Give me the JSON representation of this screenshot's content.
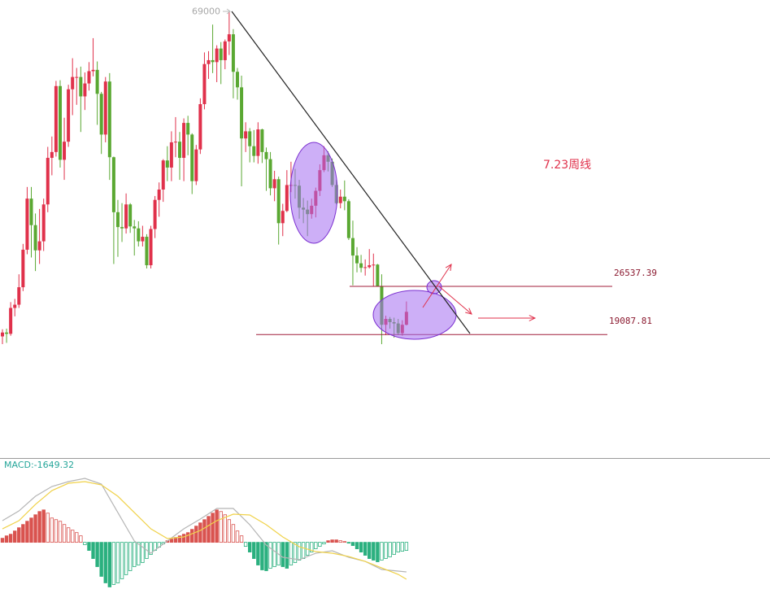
{
  "chart_data": [
    {
      "type": "candlestick",
      "ylim": [
        0,
        70800
      ],
      "up_color": "#e0314b",
      "down_color": "#5aa832",
      "open": [
        18800,
        19400,
        19200,
        23200,
        23700,
        26400,
        32200,
        40100,
        36000,
        32100,
        33500,
        39200,
        46400,
        47300,
        57500,
        46100,
        48900,
        57000,
        58900,
        58900,
        55900,
        57900,
        59800,
        60000,
        56300,
        50000,
        58200,
        46500,
        38000,
        35700,
        35500,
        39200,
        35800,
        35500,
        33500,
        34200,
        29800,
        35400,
        39900,
        41500,
        46000,
        44900,
        48800,
        48900,
        46400,
        51800,
        50000,
        42800,
        47700,
        54700,
        60900,
        61500,
        61200,
        63300,
        61500,
        64400,
        65500,
        59700,
        57300,
        49400,
        50500,
        48200,
        46700,
        50800,
        47300,
        46200,
        41700,
        43100,
        36300,
        38200,
        42200,
        42200,
        42100,
        38700,
        38400,
        37700,
        39000,
        41300,
        44500,
        46800,
        45800,
        42200,
        39400,
        40400,
        39700,
        34000,
        31300,
        30100,
        29400,
        29500,
        29800,
        29900,
        26600,
        20600,
        21500,
        21000,
        20800,
        19300,
        20600
      ],
      "high": [
        19900,
        20000,
        24100,
        24600,
        28400,
        33100,
        41900,
        41900,
        37800,
        38500,
        40100,
        48100,
        49700,
        58300,
        58400,
        52600,
        57700,
        61800,
        60300,
        60500,
        59600,
        61200,
        64900,
        61300,
        56600,
        58900,
        59500,
        46600,
        39900,
        39400,
        40900,
        39400,
        36800,
        36600,
        35900,
        34600,
        35900,
        40500,
        42600,
        46200,
        48200,
        50500,
        52700,
        50400,
        52500,
        52900,
        50200,
        48400,
        55600,
        62700,
        62900,
        67000,
        63800,
        64300,
        64700,
        69000,
        66300,
        60300,
        59100,
        51900,
        51000,
        50700,
        51900,
        50900,
        48000,
        47300,
        44400,
        43500,
        39300,
        44500,
        45800,
        44700,
        43000,
        40200,
        39800,
        40100,
        41800,
        45400,
        48200,
        47400,
        46300,
        43000,
        41500,
        42900,
        40000,
        36700,
        32600,
        31400,
        30700,
        32300,
        31600,
        30000,
        28400,
        22000,
        21800,
        21700,
        21500,
        21300,
        24200
      ],
      "low": [
        17600,
        17800,
        18900,
        21900,
        23200,
        25800,
        31500,
        31000,
        28900,
        30000,
        32000,
        38000,
        43700,
        46600,
        44900,
        43000,
        48100,
        53000,
        54600,
        50400,
        53800,
        56800,
        59000,
        51500,
        47000,
        48800,
        43000,
        30000,
        31100,
        33400,
        34700,
        34800,
        31300,
        32700,
        32700,
        29300,
        29300,
        34000,
        37300,
        39600,
        42800,
        42800,
        46500,
        43000,
        42800,
        46800,
        40800,
        42200,
        47000,
        53900,
        58600,
        59500,
        58100,
        57800,
        60100,
        62300,
        55600,
        55400,
        42000,
        47300,
        45700,
        45700,
        45500,
        45600,
        41300,
        40600,
        39700,
        33000,
        34300,
        38000,
        41100,
        40100,
        37000,
        36300,
        34300,
        37000,
        37200,
        40500,
        44200,
        44300,
        41900,
        39200,
        38600,
        38300,
        33700,
        26700,
        28700,
        28700,
        28200,
        29300,
        26500,
        26600,
        17600,
        19000,
        20000,
        18600,
        19000,
        18900,
        20500
      ],
      "close": [
        19400,
        19200,
        23200,
        23700,
        26400,
        32200,
        40100,
        36000,
        32100,
        33500,
        39200,
        46400,
        47300,
        57500,
        46100,
        48900,
        57000,
        58900,
        58900,
        55900,
        57900,
        59800,
        60000,
        56300,
        50000,
        58200,
        46500,
        38000,
        35700,
        35500,
        39200,
        35800,
        35500,
        33500,
        34200,
        29800,
        35400,
        39900,
        41500,
        46000,
        44900,
        48800,
        48900,
        46400,
        51800,
        50000,
        42800,
        47700,
        54700,
        60900,
        61500,
        61200,
        63300,
        61500,
        64400,
        65500,
        59700,
        57300,
        49400,
        50500,
        48200,
        46700,
        50800,
        47300,
        46200,
        41700,
        43100,
        36300,
        38200,
        42200,
        42200,
        42100,
        38700,
        38400,
        37700,
        39000,
        41300,
        44500,
        46800,
        45800,
        42200,
        39400,
        40400,
        39700,
        34000,
        31300,
        30100,
        29400,
        29500,
        29800,
        29900,
        26600,
        20600,
        21500,
        21000,
        20800,
        19300,
        20600,
        22600
      ],
      "hlines": [
        26537.39,
        19087.81
      ],
      "annotation": "7.23周线"
    },
    {
      "type": "macd",
      "label": "MACD:-1649.32",
      "ylim": [
        -9500,
        16000
      ],
      "up_color": "#d9534f",
      "down_color": "#2bb07f",
      "values": [
        825,
        1320,
        1650,
        2310,
        2970,
        3630,
        4290,
        4950,
        5610,
        6270,
        6600,
        5940,
        4950,
        4620,
        4290,
        3630,
        2970,
        2475,
        1980,
        1320,
        -495,
        -1650,
        -3300,
        -4950,
        -6930,
        -8250,
        -9075,
        -8580,
        -8250,
        -7425,
        -6600,
        -5775,
        -4950,
        -4620,
        -4125,
        -3300,
        -2475,
        -1650,
        -990,
        -330,
        330,
        660,
        990,
        1320,
        1650,
        1980,
        2640,
        3300,
        3960,
        4620,
        5280,
        5940,
        6600,
        6270,
        5610,
        4620,
        3630,
        2310,
        1320,
        -825,
        -1980,
        -3300,
        -4620,
        -5610,
        -5775,
        -5280,
        -4950,
        -4620,
        -4950,
        -5280,
        -4620,
        -4125,
        -3630,
        -3300,
        -2640,
        -1980,
        -1320,
        -825,
        -330,
        330,
        495,
        495,
        330,
        165,
        -165,
        -660,
        -1320,
        -1980,
        -2640,
        -3300,
        -3630,
        -3960,
        -3630,
        -3300,
        -2970,
        -2475,
        -1980,
        -1815,
        -1649.32
      ],
      "series": [
        {
          "color": "#b5b5b5",
          "x": [
            0,
            4,
            8,
            12,
            16,
            20,
            24,
            28,
            32,
            36,
            40,
            44,
            48,
            52,
            56,
            60,
            64,
            68,
            72,
            76,
            80,
            84,
            88,
            92,
            96,
            98
          ],
          "values": [
            4405,
            6392,
            9373,
            11360,
            12354,
            13016,
            11857,
            6061,
            265,
            -2219,
            265,
            2749,
            4736,
            6889,
            6889,
            3577,
            -563,
            -3047,
            -3544,
            -2219,
            -1722,
            -3047,
            -3875,
            -5531,
            -5862,
            -6028
          ]
        },
        {
          "color": "#f0d24a",
          "x": [
            0,
            4,
            8,
            12,
            16,
            20,
            24,
            28,
            32,
            36,
            40,
            44,
            48,
            52,
            56,
            60,
            64,
            68,
            72,
            76,
            80,
            84,
            88,
            92,
            96,
            98
          ],
          "values": [
            2749,
            4405,
            7717,
            10532,
            12023,
            12354,
            11691,
            9373,
            6061,
            2749,
            762,
            1093,
            2418,
            4405,
            5730,
            5564,
            3577,
            1093,
            -894,
            -1888,
            -2219,
            -2881,
            -3875,
            -5200,
            -6525,
            -7518
          ]
        }
      ]
    }
  ]
}
